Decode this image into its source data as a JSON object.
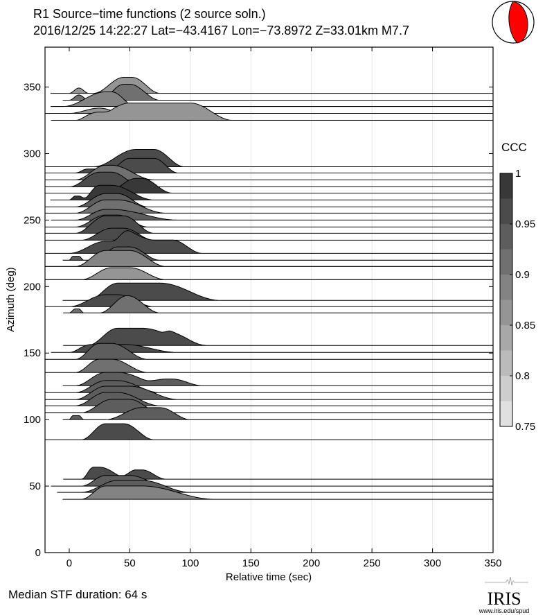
{
  "header": {
    "title": "R1 Source−time functions (2 source soln.)",
    "subtitle": "2016/12/25 14:22:27  Lat=−43.4167 Lon=−73.8972  Z=33.01km  M7.7"
  },
  "footer": {
    "median_duration": "Median STF duration: 64 s",
    "logo_text": "IRIS",
    "logo_url_text": "www.iris.edu/spud"
  },
  "colors": {
    "mechanism_fill": "#ff0000",
    "ccc_light": "#e0e0e0",
    "ccc_dark": "#383838"
  },
  "chart_data": {
    "type": "area",
    "title": "R1 Source-time functions (2 source soln.)",
    "xlabel": "Relative time (sec)",
    "ylabel": "Azimuth (deg)",
    "xlim": [
      -20,
      350
    ],
    "ylim": [
      0,
      380
    ],
    "xticks": [
      0,
      50,
      100,
      150,
      200,
      250,
      300,
      350
    ],
    "yticks": [
      0,
      50,
      100,
      150,
      200,
      250,
      300,
      350
    ],
    "colorbar": {
      "label": "CCC",
      "range": [
        0.75,
        1
      ],
      "ticks": [
        "1",
        "0.95",
        "0.9",
        "0.85",
        "0.8",
        "0.75"
      ],
      "steps": 10
    },
    "trace_format": "azimuth, start_time, ccc, pulses[[rise_start, plateau_start, plateau_end, fall_end, amplitude_deg]]",
    "traces": [
      [
        345.3,
        -15,
        0.87,
        [
          [
            0,
            8,
            8,
            16,
            4
          ],
          [
            20,
            45,
            52,
            75,
            12
          ]
        ]
      ],
      [
        340.1,
        -5,
        0.9,
        [
          [
            0,
            8,
            8,
            16,
            4
          ],
          [
            25,
            45,
            50,
            75,
            12
          ]
        ]
      ],
      [
        335.4,
        -15,
        0.88,
        [
          [
            -5,
            30,
            35,
            55,
            11
          ]
        ]
      ],
      [
        330.2,
        -20,
        0.87,
        [
          [
            0,
            25,
            25,
            45,
            4
          ]
        ]
      ],
      [
        325.0,
        -15,
        0.87,
        [
          [
            5,
            20,
            20,
            35,
            5
          ],
          [
            15,
            50,
            100,
            135,
            13
          ]
        ]
      ],
      [
        290.1,
        -20,
        0.97,
        [
          [
            20,
            55,
            70,
            95,
            13
          ]
        ]
      ],
      [
        285.4,
        -20,
        0.96,
        [
          [
            5,
            15,
            20,
            40,
            3
          ],
          [
            30,
            50,
            70,
            90,
            11
          ]
        ]
      ],
      [
        280.2,
        -20,
        0.91,
        [
          [
            5,
            30,
            35,
            70,
            11
          ]
        ]
      ],
      [
        275.0,
        -20,
        0.96,
        [
          [
            0,
            25,
            35,
            60,
            11
          ]
        ]
      ],
      [
        270.3,
        -20,
        0.98,
        [
          [
            30,
            55,
            60,
            85,
            11
          ]
        ]
      ],
      [
        265.1,
        -15,
        0.98,
        [
          [
            0,
            5,
            8,
            15,
            3
          ],
          [
            10,
            25,
            35,
            70,
            11
          ]
        ]
      ],
      [
        259.9,
        -20,
        0.95,
        [
          [
            5,
            30,
            40,
            65,
            10
          ]
        ]
      ],
      [
        255.2,
        -20,
        0.92,
        [
          [
            5,
            30,
            40,
            80,
            10
          ]
        ]
      ],
      [
        250.0,
        -15,
        0.93,
        [
          [
            5,
            30,
            35,
            90,
            8
          ]
        ]
      ],
      [
        244.8,
        -20,
        0.95,
        [
          [
            5,
            30,
            40,
            65,
            9
          ]
        ]
      ],
      [
        240.1,
        -20,
        0.97,
        [
          [
            5,
            30,
            45,
            70,
            13
          ]
        ]
      ],
      [
        234.9,
        -20,
        0.97,
        [
          [
            10,
            35,
            45,
            70,
            9
          ]
        ]
      ],
      [
        225.0,
        -20,
        0.96,
        [
          [
            0,
            30,
            40,
            70,
            9
          ],
          [
            35,
            50,
            85,
            110,
            10
          ]
        ]
      ],
      [
        219.8,
        -5,
        0.93,
        [
          [
            0,
            3,
            8,
            12,
            3
          ],
          [
            20,
            40,
            50,
            75,
            10
          ]
        ]
      ],
      [
        215.1,
        -20,
        0.88,
        [
          [
            5,
            30,
            50,
            80,
            12
          ]
        ]
      ],
      [
        205.2,
        -20,
        0.86,
        [
          [
            10,
            35,
            50,
            80,
            9
          ]
        ]
      ],
      [
        189.6,
        -5,
        0.96,
        [
          [
            15,
            40,
            75,
            125,
            13
          ]
        ]
      ],
      [
        184.9,
        -20,
        0.97,
        [
          [
            0,
            30,
            40,
            70,
            9
          ]
        ]
      ],
      [
        180.2,
        -5,
        0.92,
        [
          [
            0,
            5,
            8,
            12,
            3
          ],
          [
            25,
            48,
            48,
            75,
            13
          ]
        ]
      ],
      [
        155.7,
        -5,
        0.97,
        [
          [
            15,
            40,
            60,
            110,
            13
          ],
          [
            75,
            85,
            90,
            115,
            4
          ]
        ]
      ],
      [
        150.5,
        -15,
        0.96,
        [
          [
            0,
            15,
            15,
            30,
            5
          ],
          [
            10,
            35,
            45,
            90,
            6
          ]
        ]
      ],
      [
        145.3,
        -20,
        0.93,
        [
          [
            5,
            25,
            35,
            65,
            12
          ]
        ]
      ],
      [
        135.4,
        -20,
        0.92,
        [
          [
            5,
            25,
            35,
            65,
            10
          ]
        ]
      ],
      [
        125.5,
        -5,
        0.95,
        [
          [
            5,
            30,
            40,
            80,
            10
          ],
          [
            60,
            80,
            85,
            110,
            5
          ]
        ]
      ],
      [
        120.3,
        -20,
        0.95,
        [
          [
            5,
            30,
            40,
            75,
            9
          ]
        ]
      ],
      [
        115.1,
        -20,
        0.93,
        [
          [
            5,
            30,
            50,
            90,
            10
          ]
        ]
      ],
      [
        110.4,
        -20,
        0.93,
        [
          [
            5,
            30,
            40,
            75,
            10
          ]
        ]
      ],
      [
        105.2,
        -20,
        0.93,
        [
          [
            10,
            35,
            50,
            75,
            10
          ]
        ]
      ],
      [
        100.0,
        -5,
        0.93,
        [
          [
            0,
            3,
            8,
            12,
            3
          ],
          [
            30,
            60,
            75,
            100,
            9
          ]
        ]
      ],
      [
        84.9,
        -20,
        0.97,
        [
          [
            10,
            30,
            45,
            70,
            12
          ]
        ]
      ],
      [
        55.2,
        -5,
        0.96,
        [
          [
            10,
            20,
            25,
            50,
            9
          ],
          [
            40,
            55,
            60,
            80,
            7
          ]
        ]
      ],
      [
        50.0,
        -15,
        0.94,
        [
          [
            10,
            30,
            50,
            80,
            8
          ]
        ]
      ],
      [
        45.3,
        -10,
        0.93,
        [
          [
            10,
            40,
            60,
            100,
            9
          ]
        ]
      ],
      [
        40.1,
        -5,
        0.88,
        [
          [
            10,
            30,
            60,
            120,
            10
          ]
        ]
      ]
    ]
  }
}
